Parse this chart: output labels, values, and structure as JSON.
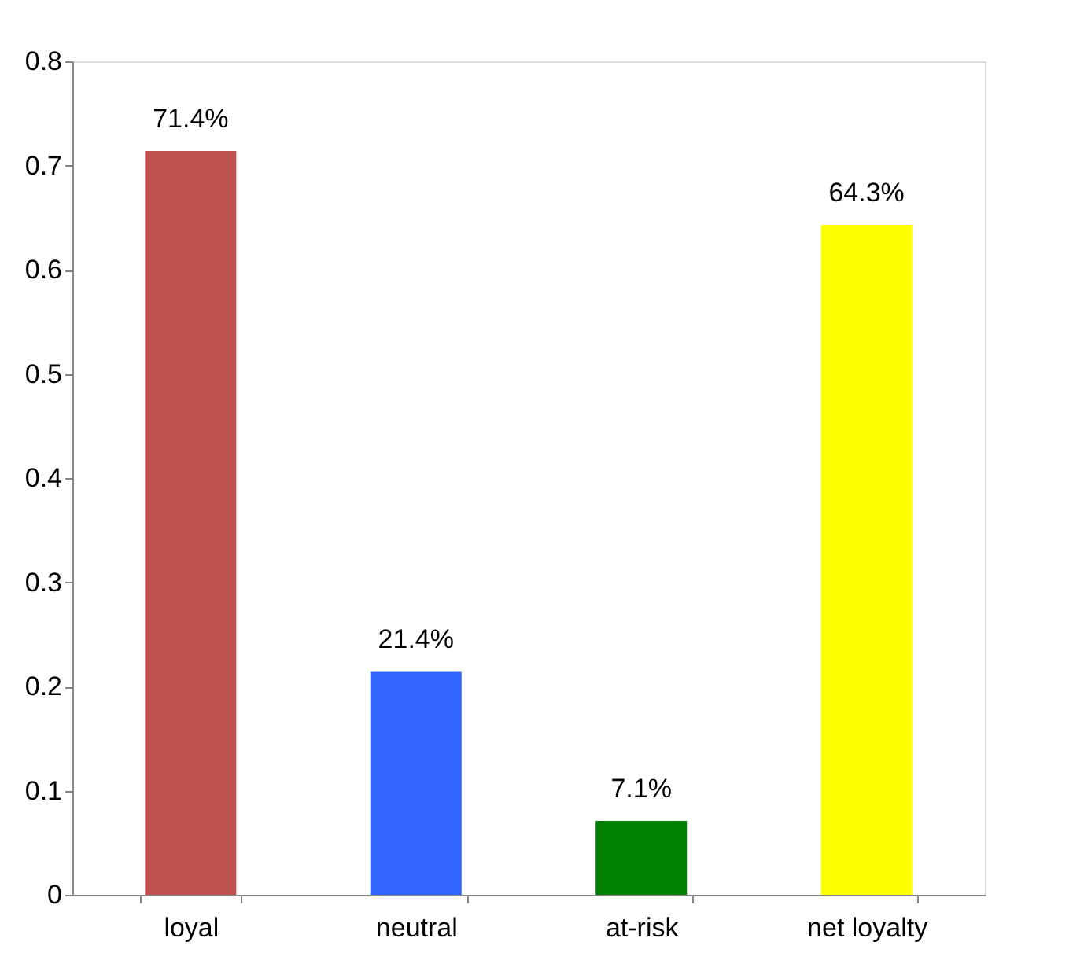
{
  "chart_data": {
    "type": "bar",
    "categories": [
      "loyal",
      "neutral",
      "at-risk",
      "net loyalty"
    ],
    "values": [
      0.714,
      0.214,
      0.071,
      0.643
    ],
    "colors": [
      "#c0504d",
      "#3366ff",
      "#008000",
      "#ffff00"
    ],
    "value_labels": [
      "71.4%",
      "21.4%",
      "7.1%",
      "64.3%"
    ],
    "ylim": [
      0,
      0.8
    ],
    "yticks": [
      0,
      0.1,
      0.2,
      0.3,
      0.4,
      0.5,
      0.6,
      0.7,
      0.8
    ],
    "grid": false
  }
}
